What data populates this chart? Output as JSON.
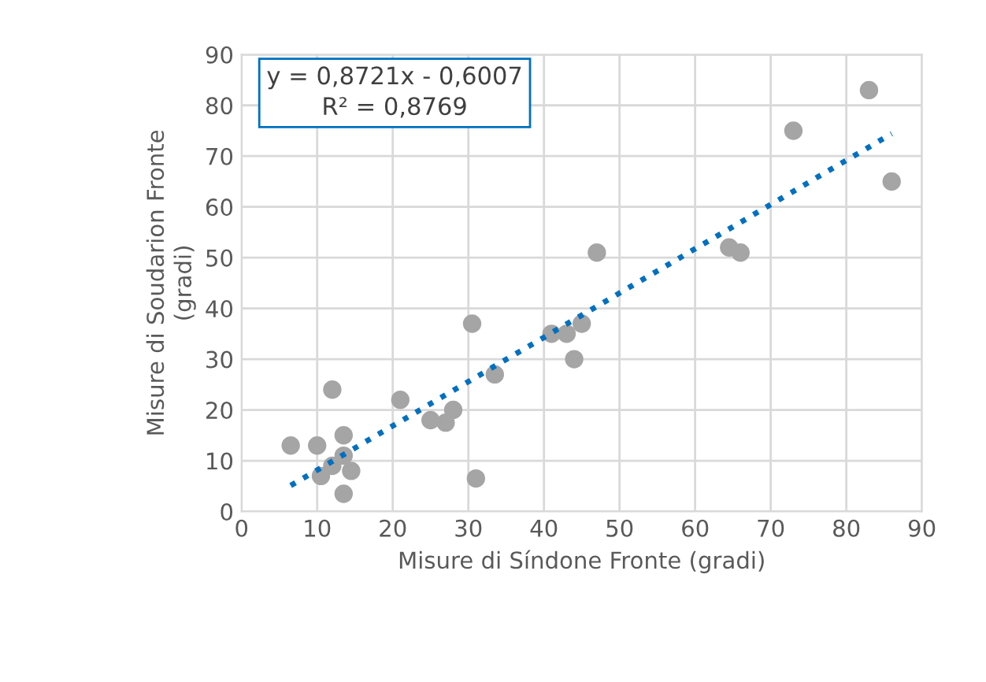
{
  "chart_data": {
    "type": "scatter",
    "xlabel": "Misure di Síndone Fronte (gradi)",
    "ylabel": "Misure di Soudarion Fronte\n(gradi)",
    "annotations": [
      "y = 0,8721x - 0,6007\nR² = 0,8769"
    ],
    "xlim": [
      0,
      90
    ],
    "ylim": [
      0,
      90
    ],
    "xticks": [
      0,
      10,
      20,
      30,
      40,
      50,
      60,
      70,
      80,
      90
    ],
    "yticks": [
      0,
      10,
      20,
      30,
      40,
      50,
      60,
      70,
      80,
      90
    ],
    "grid": true,
    "legend": false,
    "series": [
      {
        "color": "#a5a5a5",
        "marker": "circle",
        "x": [
          6.5,
          10,
          12,
          10.5,
          13.5,
          13.5,
          14.5,
          13.5,
          12,
          21,
          25,
          28,
          27,
          30.5,
          31,
          33.5,
          41,
          43,
          45,
          44,
          47,
          64.5,
          66,
          73,
          83,
          86
        ],
        "values": [
          13,
          13,
          24,
          7,
          15,
          11,
          8,
          3.5,
          9,
          22,
          18,
          20,
          17.5,
          37,
          6.5,
          27,
          35,
          35,
          37,
          30,
          51,
          52,
          51,
          75,
          83,
          65
        ]
      },
      {
        "type": "line",
        "color": "#0070c0",
        "line_style": "dotted",
        "marker": "none",
        "x": [
          6.5,
          86
        ],
        "values": [
          5.1,
          74.4
        ]
      }
    ]
  }
}
